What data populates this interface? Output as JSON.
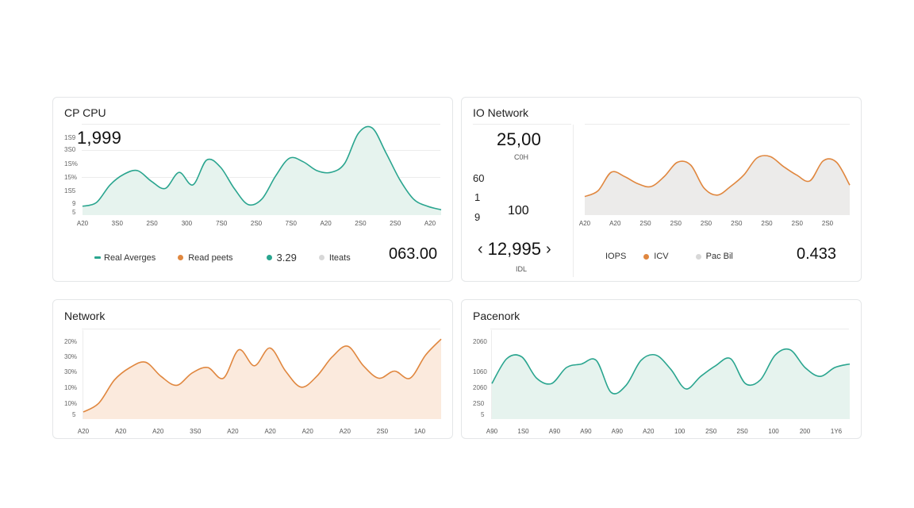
{
  "colors": {
    "teal": "#2aa58f",
    "orange": "#e0873f",
    "gray": "#cfcfcf",
    "teal_fill": "#e6f3ee",
    "orange_fill": "#fbeadd",
    "gray_fill": "#ecebea"
  },
  "cpu_panel": {
    "title": "CP CPU",
    "big_value": "1,999",
    "yticks": [
      "1S9",
      "3S0",
      "1S%",
      "15%",
      "1S5",
      "9",
      "5"
    ],
    "xticks": [
      "A20",
      "3S0",
      "2S0",
      "300",
      "7S0",
      "2S0",
      "7S0",
      "A20",
      "2S0",
      "2S0",
      "A20"
    ],
    "legend": [
      {
        "label": "Real Averges",
        "color": "#2aa58f",
        "marker": "dash"
      },
      {
        "label": "Read peets",
        "color": "#e0873f",
        "marker": "dot"
      },
      {
        "label": "3.29",
        "color": "#2aa58f",
        "marker": "dot"
      },
      {
        "label": "Iteats",
        "color": "#d8d8d8",
        "marker": "dot"
      }
    ],
    "total": "063.00"
  },
  "io_panel": {
    "title": "IO Network",
    "value_top": "25,00",
    "value_top_sub": "C0H",
    "side_labels": [
      "60",
      "1",
      "9"
    ],
    "value_mid": "100",
    "value_main": "12,995",
    "value_main_sub": "IDL",
    "prev_arrow": "‹",
    "next_arrow": "›",
    "xticks": [
      "A20",
      "A20",
      "2S0",
      "2S0",
      "2S0",
      "2S0",
      "2S0",
      "2S0",
      "2S0"
    ],
    "legend": [
      {
        "label": "IOPS",
        "color": "",
        "marker": "none"
      },
      {
        "label": "ICV",
        "color": "#e0873f",
        "marker": "dot"
      },
      {
        "label": "Pac Bil",
        "color": "#d8d8d8",
        "marker": "dot"
      }
    ],
    "total": "0.433"
  },
  "network_panel": {
    "title": "Network",
    "yticks": [
      "20%",
      "30%",
      "30%",
      "10%",
      "10%",
      "5"
    ],
    "xticks": [
      "A20",
      "A20",
      "A20",
      "3S0",
      "A20",
      "A20",
      "A20",
      "A20",
      "2S0",
      "1A0"
    ]
  },
  "packet_panel": {
    "title": "Pacenork",
    "yticks": [
      "2060",
      "1060",
      "2060",
      "2S0",
      "5"
    ],
    "xticks": [
      "A90",
      "1S0",
      "A90",
      "A90",
      "A90",
      "A20",
      "100",
      "2S0",
      "2S0",
      "100",
      "200",
      "1Y6"
    ]
  },
  "chart_data": [
    {
      "type": "area",
      "title": "CP CPU",
      "series": [
        {
          "values": [
            10,
            14,
            34,
            46,
            50,
            38,
            30,
            48,
            34,
            62,
            54,
            30,
            12,
            18,
            44,
            64,
            60,
            50,
            48,
            58,
            92,
            98,
            70,
            40,
            18,
            10,
            6
          ]
        }
      ]
    },
    {
      "type": "area",
      "title": "IO Network",
      "series": [
        {
          "values": [
            26,
            34,
            60,
            54,
            44,
            40,
            54,
            74,
            70,
            38,
            28,
            40,
            56,
            80,
            82,
            68,
            56,
            48,
            76,
            74,
            42
          ]
        }
      ]
    },
    {
      "type": "area",
      "title": "Network",
      "series": [
        {
          "values": [
            8,
            18,
            44,
            58,
            64,
            48,
            38,
            52,
            58,
            46,
            78,
            60,
            80,
            54,
            36,
            48,
            70,
            82,
            60,
            46,
            54,
            46,
            72,
            90
          ]
        }
      ]
    },
    {
      "type": "area",
      "title": "Pacenork",
      "series": [
        {
          "values": [
            40,
            68,
            70,
            46,
            40,
            58,
            62,
            66,
            30,
            38,
            66,
            72,
            56,
            34,
            48,
            60,
            68,
            40,
            44,
            72,
            78,
            58,
            48,
            58,
            62
          ]
        }
      ]
    }
  ]
}
